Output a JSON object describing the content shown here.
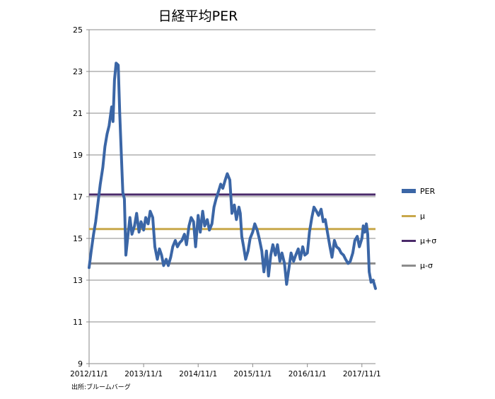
{
  "chart_data": {
    "type": "line",
    "title": "日経平均PER",
    "source_note": "出所:ブルームバーグ",
    "xlabel": "",
    "ylabel": "",
    "ylim": [
      9,
      25
    ],
    "y_ticks": [
      "9",
      "11",
      "13",
      "15",
      "17",
      "19",
      "21",
      "23",
      "25"
    ],
    "x_ticks": [
      "2012/11/1",
      "2013/11/1",
      "2014/11/1",
      "2015/11/1",
      "2016/11/1",
      "2017/11/1"
    ],
    "xlim": [
      "2012/11/1",
      "2018/1/31"
    ],
    "grid": true,
    "legend_position": "right",
    "series": [
      {
        "name": "PER",
        "color": "#3b66a6",
        "points": [
          [
            "2012/11/1",
            13.6
          ],
          [
            "2012/11/15",
            14.4
          ],
          [
            "2012/12/1",
            15.2
          ],
          [
            "2012/12/15",
            15.8
          ],
          [
            "2013/1/1",
            16.8
          ],
          [
            "2013/1/15",
            17.6
          ],
          [
            "2013/2/1",
            18.4
          ],
          [
            "2013/2/15",
            19.4
          ],
          [
            "2013/3/1",
            20.0
          ],
          [
            "2013/3/15",
            20.4
          ],
          [
            "2013/4/1",
            21.3
          ],
          [
            "2013/4/10",
            20.6
          ],
          [
            "2013/4/20",
            22.6
          ],
          [
            "2013/5/1",
            23.4
          ],
          [
            "2013/5/15",
            23.3
          ],
          [
            "2013/5/25",
            21.0
          ],
          [
            "2013/6/5",
            19.0
          ],
          [
            "2013/6/15",
            17.2
          ],
          [
            "2013/6/25",
            16.9
          ],
          [
            "2013/7/5",
            14.2
          ],
          [
            "2013/7/20",
            15.2
          ],
          [
            "2013/8/1",
            16.0
          ],
          [
            "2013/8/15",
            15.2
          ],
          [
            "2013/9/1",
            15.6
          ],
          [
            "2013/9/15",
            16.2
          ],
          [
            "2013/10/1",
            15.3
          ],
          [
            "2013/10/15",
            15.8
          ],
          [
            "2013/11/1",
            15.4
          ],
          [
            "2013/11/15",
            16.0
          ],
          [
            "2013/12/1",
            15.7
          ],
          [
            "2013/12/15",
            16.3
          ],
          [
            "2014/1/1",
            16.0
          ],
          [
            "2014/1/15",
            14.6
          ],
          [
            "2014/2/1",
            14.0
          ],
          [
            "2014/2/15",
            14.5
          ],
          [
            "2014/3/1",
            14.2
          ],
          [
            "2014/3/15",
            13.7
          ],
          [
            "2014/4/1",
            14.0
          ],
          [
            "2014/4/15",
            13.7
          ],
          [
            "2014/5/1",
            14.1
          ],
          [
            "2014/5/15",
            14.6
          ],
          [
            "2014/6/1",
            14.9
          ],
          [
            "2014/6/15",
            14.6
          ],
          [
            "2014/7/1",
            14.8
          ],
          [
            "2014/7/15",
            14.9
          ],
          [
            "2014/8/1",
            15.2
          ],
          [
            "2014/8/15",
            14.7
          ],
          [
            "2014/9/1",
            15.6
          ],
          [
            "2014/9/15",
            16.0
          ],
          [
            "2014/10/1",
            15.8
          ],
          [
            "2014/10/15",
            14.6
          ],
          [
            "2014/11/1",
            16.1
          ],
          [
            "2014/11/15",
            15.3
          ],
          [
            "2014/12/1",
            16.3
          ],
          [
            "2014/12/15",
            15.6
          ],
          [
            "2015/1/1",
            15.9
          ],
          [
            "2015/1/15",
            15.4
          ],
          [
            "2015/2/1",
            15.7
          ],
          [
            "2015/2/15",
            16.5
          ],
          [
            "2015/3/1",
            16.9
          ],
          [
            "2015/3/15",
            17.2
          ],
          [
            "2015/4/1",
            17.6
          ],
          [
            "2015/4/15",
            17.4
          ],
          [
            "2015/5/1",
            17.8
          ],
          [
            "2015/5/15",
            18.1
          ],
          [
            "2015/6/1",
            17.8
          ],
          [
            "2015/6/15",
            16.2
          ],
          [
            "2015/7/1",
            16.6
          ],
          [
            "2015/7/15",
            15.9
          ],
          [
            "2015/8/1",
            16.5
          ],
          [
            "2015/8/10",
            16.2
          ],
          [
            "2015/8/20",
            15.1
          ],
          [
            "2015/9/1",
            14.6
          ],
          [
            "2015/9/15",
            14.0
          ],
          [
            "2015/10/1",
            14.4
          ],
          [
            "2015/10/15",
            15.0
          ],
          [
            "2015/11/1",
            15.3
          ],
          [
            "2015/11/15",
            15.7
          ],
          [
            "2015/12/1",
            15.4
          ],
          [
            "2015/12/15",
            15.0
          ],
          [
            "2016/1/1",
            14.4
          ],
          [
            "2016/1/15",
            13.4
          ],
          [
            "2016/2/1",
            14.4
          ],
          [
            "2016/2/15",
            13.2
          ],
          [
            "2016/3/1",
            14.2
          ],
          [
            "2016/3/15",
            14.7
          ],
          [
            "2016/4/1",
            14.2
          ],
          [
            "2016/4/15",
            14.7
          ],
          [
            "2016/5/1",
            13.9
          ],
          [
            "2016/5/15",
            14.3
          ],
          [
            "2016/6/1",
            13.8
          ],
          [
            "2016/6/15",
            12.8
          ],
          [
            "2016/7/1",
            13.6
          ],
          [
            "2016/7/15",
            14.3
          ],
          [
            "2016/8/1",
            13.9
          ],
          [
            "2016/8/15",
            14.2
          ],
          [
            "2016/9/1",
            14.5
          ],
          [
            "2016/9/15",
            14.0
          ],
          [
            "2016/10/1",
            14.6
          ],
          [
            "2016/10/15",
            14.2
          ],
          [
            "2016/11/1",
            14.3
          ],
          [
            "2016/11/15",
            15.3
          ],
          [
            "2016/12/1",
            16.0
          ],
          [
            "2016/12/15",
            16.5
          ],
          [
            "2017/1/1",
            16.3
          ],
          [
            "2017/1/15",
            16.1
          ],
          [
            "2017/2/1",
            16.4
          ],
          [
            "2017/2/15",
            15.8
          ],
          [
            "2017/3/1",
            15.9
          ],
          [
            "2017/3/15",
            15.3
          ],
          [
            "2017/4/1",
            14.6
          ],
          [
            "2017/4/15",
            14.1
          ],
          [
            "2017/5/1",
            14.9
          ],
          [
            "2017/5/15",
            14.6
          ],
          [
            "2017/6/1",
            14.5
          ],
          [
            "2017/6/15",
            14.3
          ],
          [
            "2017/7/1",
            14.2
          ],
          [
            "2017/7/15",
            14.0
          ],
          [
            "2017/8/1",
            13.8
          ],
          [
            "2017/8/15",
            13.9
          ],
          [
            "2017/9/1",
            14.3
          ],
          [
            "2017/9/15",
            14.9
          ],
          [
            "2017/10/1",
            15.1
          ],
          [
            "2017/10/15",
            14.6
          ],
          [
            "2017/11/1",
            15.0
          ],
          [
            "2017/11/10",
            15.6
          ],
          [
            "2017/11/20",
            15.3
          ],
          [
            "2017/12/1",
            15.7
          ],
          [
            "2017/12/10",
            15.2
          ],
          [
            "2017/12/20",
            13.4
          ],
          [
            "2018/1/1",
            12.9
          ],
          [
            "2018/1/15",
            13.0
          ],
          [
            "2018/1/31",
            12.6
          ]
        ]
      },
      {
        "name": "μ",
        "color": "#c8a84b",
        "value": 15.45
      },
      {
        "name": "μ+σ",
        "color": "#4a2a6a",
        "value": 17.1
      },
      {
        "name": "μ-σ",
        "color": "#8c8c8c",
        "value": 13.8
      }
    ]
  }
}
